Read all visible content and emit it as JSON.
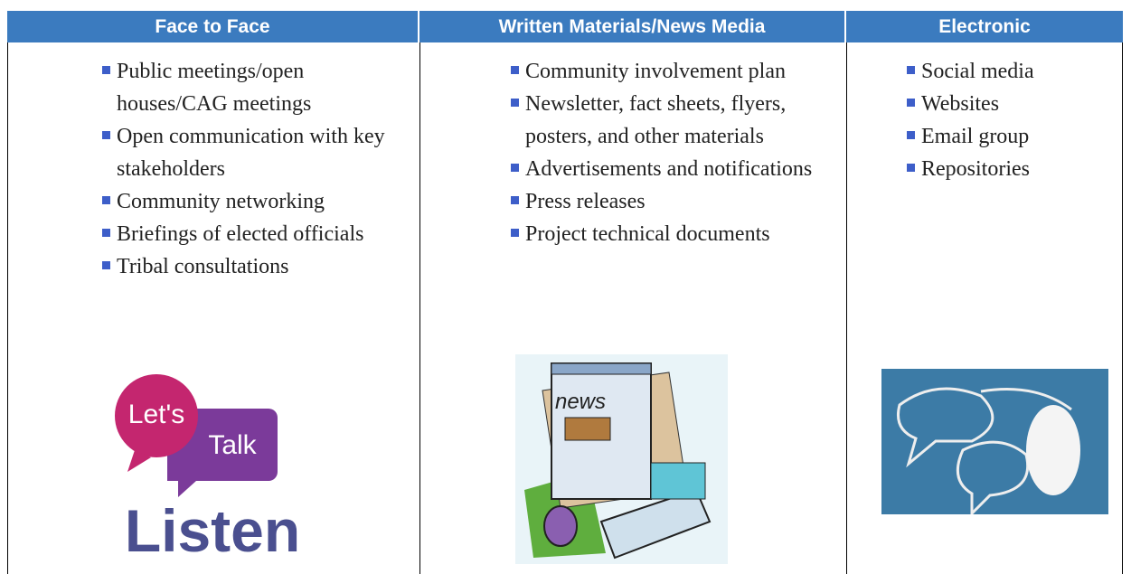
{
  "table": {
    "headers": [
      "Face to Face",
      "Written Materials/News Media",
      "Electronic"
    ],
    "columns": [
      [
        "Public meetings/open houses/CAG meetings",
        "Open communication with key stakeholders",
        "Community networking",
        "Briefings of elected officials",
        "Tribal consultations"
      ],
      [
        "Community involvement plan",
        "Newsletter, fact sheets, flyers, posters, and other materials",
        "Advertisements and notifications",
        "Press releases",
        "Project technical documents"
      ],
      [
        "Social media",
        "Websites",
        "Email group",
        "Repositories"
      ]
    ]
  },
  "images": {
    "talk": [
      "Let's",
      "Talk"
    ],
    "listen": "Listen",
    "news": "news"
  }
}
